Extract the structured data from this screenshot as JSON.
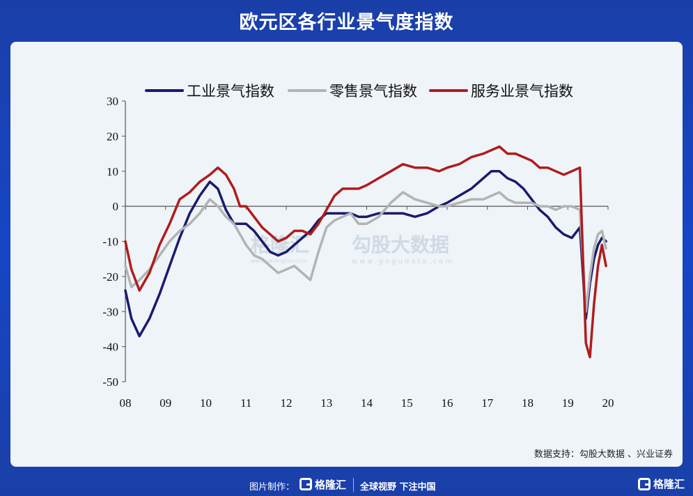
{
  "title": "欧元区各行业景气度指数",
  "source": "数据支持：勾股大数据 、兴业证券",
  "footer": {
    "made_by": "图片制作：",
    "logo_text": "格隆汇",
    "slogan": "全球视野 下注中国",
    "corner_logo_text": "格隆汇"
  },
  "watermark": {
    "left_text": "格隆汇",
    "left_url": "www.gelonghui.com",
    "right_text": "勾股大数据",
    "right_url": "www.gogudata.com"
  },
  "colors": {
    "industrial": "#1a1a6e",
    "retail": "#b3b3b3",
    "services": "#b01c1c",
    "axis": "#555555"
  },
  "chart_data": {
    "type": "line",
    "title": "",
    "xlabel": "",
    "ylabel": "",
    "x_range": [
      2008.0,
      2020.0
    ],
    "ylim": [
      -50,
      30
    ],
    "yticks": [
      30,
      20,
      10,
      0,
      -10,
      -20,
      -30,
      -40,
      -50
    ],
    "xtick_labels": [
      "08",
      "09",
      "10",
      "11",
      "12",
      "13",
      "14",
      "15",
      "16",
      "17",
      "18",
      "19",
      "20"
    ],
    "legend": "top",
    "series": [
      {
        "name": "工业景气指数",
        "color": "#1a1a6e",
        "x": [
          2008.0,
          2008.15,
          2008.35,
          2008.6,
          2008.85,
          2009.1,
          2009.35,
          2009.6,
          2009.85,
          2010.1,
          2010.3,
          2010.5,
          2010.7,
          2010.85,
          2011.0,
          2011.2,
          2011.4,
          2011.6,
          2011.8,
          2012.0,
          2012.2,
          2012.4,
          2012.6,
          2012.8,
          2013.0,
          2013.2,
          2013.4,
          2013.6,
          2013.8,
          2014.0,
          2014.3,
          2014.6,
          2014.9,
          2015.2,
          2015.5,
          2015.8,
          2016.0,
          2016.3,
          2016.6,
          2016.9,
          2017.1,
          2017.3,
          2017.5,
          2017.7,
          2017.9,
          2018.1,
          2018.3,
          2018.5,
          2018.7,
          2018.9,
          2019.1,
          2019.3,
          2019.45,
          2019.55,
          2019.65,
          2019.75,
          2019.85,
          2019.95
        ],
        "values": [
          -24,
          -32,
          -37,
          -32,
          -25,
          -17,
          -9,
          -2,
          3,
          7,
          5,
          -1,
          -5,
          -5,
          -5,
          -7,
          -10,
          -13,
          -14,
          -13,
          -11,
          -9,
          -7,
          -4,
          -2,
          -2,
          -2,
          -2,
          -3,
          -3,
          -2,
          -2,
          -2,
          -3,
          -2,
          0,
          1,
          3,
          5,
          8,
          10,
          10,
          8,
          7,
          5,
          2,
          -1,
          -3,
          -6,
          -8,
          -9,
          -6,
          -32,
          -22,
          -15,
          -11,
          -9,
          -10
        ]
      },
      {
        "name": "零售景气指数",
        "color": "#b3b3b3",
        "x": [
          2008.0,
          2008.15,
          2008.35,
          2008.6,
          2008.85,
          2009.1,
          2009.35,
          2009.6,
          2009.85,
          2010.1,
          2010.3,
          2010.5,
          2010.7,
          2010.85,
          2011.0,
          2011.2,
          2011.4,
          2011.6,
          2011.8,
          2012.0,
          2012.2,
          2012.4,
          2012.6,
          2012.8,
          2013.0,
          2013.2,
          2013.4,
          2013.6,
          2013.8,
          2014.0,
          2014.3,
          2014.6,
          2014.9,
          2015.2,
          2015.5,
          2015.8,
          2016.0,
          2016.3,
          2016.6,
          2016.9,
          2017.1,
          2017.3,
          2017.5,
          2017.7,
          2017.9,
          2018.1,
          2018.3,
          2018.5,
          2018.7,
          2018.9,
          2019.1,
          2019.3,
          2019.45,
          2019.55,
          2019.65,
          2019.75,
          2019.85,
          2019.95
        ],
        "values": [
          -17,
          -23,
          -21,
          -18,
          -14,
          -10,
          -7,
          -5,
          -2,
          2,
          0,
          -3,
          -5,
          -8,
          -11,
          -14,
          -15,
          -17,
          -19,
          -18,
          -17,
          -19,
          -21,
          -13,
          -6,
          -4,
          -3,
          -2,
          -5,
          -5,
          -3,
          1,
          4,
          2,
          1,
          0,
          0,
          1,
          2,
          2,
          3,
          4,
          2,
          1,
          1,
          1,
          0,
          0,
          -1,
          0,
          0,
          -1,
          -30,
          -20,
          -12,
          -8,
          -7,
          -12
        ]
      },
      {
        "name": "服务业景气指数",
        "color": "#b01c1c",
        "x": [
          2008.0,
          2008.15,
          2008.35,
          2008.6,
          2008.85,
          2009.1,
          2009.35,
          2009.6,
          2009.85,
          2010.1,
          2010.3,
          2010.5,
          2010.7,
          2010.85,
          2011.0,
          2011.2,
          2011.4,
          2011.6,
          2011.8,
          2012.0,
          2012.2,
          2012.4,
          2012.6,
          2012.8,
          2013.0,
          2013.2,
          2013.4,
          2013.6,
          2013.8,
          2014.0,
          2014.3,
          2014.6,
          2014.9,
          2015.2,
          2015.5,
          2015.8,
          2016.0,
          2016.3,
          2016.6,
          2016.9,
          2017.1,
          2017.3,
          2017.5,
          2017.7,
          2017.9,
          2018.1,
          2018.3,
          2018.5,
          2018.7,
          2018.9,
          2019.1,
          2019.3,
          2019.45,
          2019.55,
          2019.65,
          2019.75,
          2019.85,
          2019.95
        ],
        "values": [
          -10,
          -18,
          -24,
          -19,
          -11,
          -5,
          2,
          4,
          7,
          9,
          11,
          9,
          5,
          0,
          0,
          -3,
          -6,
          -8,
          -10,
          -9,
          -7,
          -7,
          -8,
          -5,
          -1,
          3,
          5,
          5,
          5,
          6,
          8,
          10,
          12,
          11,
          11,
          10,
          11,
          12,
          14,
          15,
          16,
          17,
          15,
          15,
          14,
          13,
          11,
          11,
          10,
          9,
          10,
          11,
          -39,
          -43,
          -28,
          -17,
          -11,
          -17
        ]
      }
    ]
  }
}
